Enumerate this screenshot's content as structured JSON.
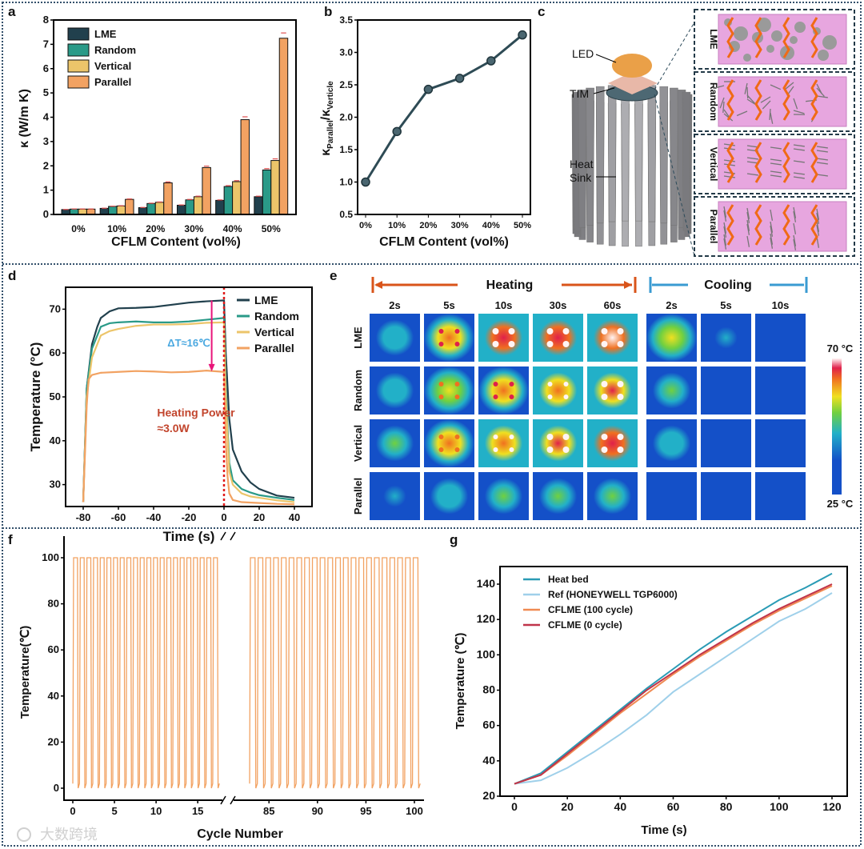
{
  "panels": {
    "a": "a",
    "b": "b",
    "c": "c",
    "d": "d",
    "e": "e",
    "f": "f",
    "g": "g"
  },
  "watermark": "大数跨境",
  "chart_data": [
    {
      "id": "a",
      "type": "bar",
      "xlabel": "CFLM Content (vol%)",
      "ylabel": "κ (W/m K)",
      "ylim": [
        0,
        8
      ],
      "yticks": [
        0,
        1,
        2,
        3,
        4,
        5,
        6,
        7,
        8
      ],
      "categories": [
        "0%",
        "10%",
        "20%",
        "30%",
        "40%",
        "50%"
      ],
      "legend_position": "top-left",
      "series": [
        {
          "name": "LME",
          "color": "#21404d",
          "values": [
            0.2,
            0.25,
            0.28,
            0.38,
            0.58,
            0.73
          ]
        },
        {
          "name": "Random",
          "color": "#2a9a88",
          "values": [
            0.22,
            0.33,
            0.45,
            0.6,
            1.15,
            1.83
          ]
        },
        {
          "name": "Vertical",
          "color": "#ecc56a",
          "values": [
            0.22,
            0.35,
            0.5,
            0.73,
            1.35,
            2.22
          ]
        },
        {
          "name": "Parallel",
          "color": "#f2a262",
          "values": [
            0.22,
            0.62,
            1.3,
            1.93,
            3.9,
            7.25
          ]
        }
      ]
    },
    {
      "id": "b",
      "type": "line",
      "xlabel": "CFLM Content (vol%)",
      "ylabel_main": "κ",
      "ylabel_sub1": "Parallel",
      "ylabel_sep": "/κ",
      "ylabel_sub2": "Verticle",
      "ylim": [
        0.5,
        3.5
      ],
      "yticks": [
        "0.5",
        "1.0",
        "1.5",
        "2.0",
        "2.5",
        "3.0",
        "3.5"
      ],
      "categories": [
        "0%",
        "10%",
        "20%",
        "30%",
        "40%",
        "50%"
      ],
      "values": [
        1.0,
        1.78,
        2.43,
        2.6,
        2.87,
        3.27
      ],
      "color": "#2e4b55"
    },
    {
      "id": "d",
      "type": "line",
      "xlabel": "Time (s)",
      "ylabel": "Temperature (°C)",
      "xlim": [
        -90,
        50
      ],
      "ylim": [
        25,
        75
      ],
      "xticks": [
        -80,
        -60,
        -40,
        -20,
        0,
        20,
        40
      ],
      "yticks": [
        30,
        40,
        50,
        60,
        70
      ],
      "legend_position": "top-right",
      "annotations": {
        "delta": "ΔT≈16℃",
        "power_line1": "Heating Power",
        "power_line2": "≈3.0W"
      },
      "series": [
        {
          "name": "LME",
          "color": "#21404d",
          "x": [
            -80,
            -78,
            -75,
            -72,
            -70,
            -65,
            -60,
            -50,
            -40,
            -30,
            -20,
            -10,
            0,
            1,
            3,
            5,
            10,
            15,
            20,
            30,
            40
          ],
          "y": [
            26,
            52,
            62,
            66,
            68,
            69.5,
            70.2,
            70.3,
            70.5,
            71,
            71.5,
            71.8,
            72,
            60,
            45,
            38,
            33,
            30.5,
            29,
            27.5,
            27
          ]
        },
        {
          "name": "Random",
          "color": "#2a9a88",
          "x": [
            -80,
            -78,
            -75,
            -72,
            -70,
            -65,
            -60,
            -50,
            -40,
            -30,
            -20,
            -10,
            0,
            1,
            3,
            5,
            10,
            15,
            20,
            30,
            40
          ],
          "y": [
            26,
            52,
            61,
            64,
            66,
            66.8,
            67,
            67.2,
            67,
            67,
            67.2,
            67.6,
            68,
            52,
            35,
            31,
            29,
            28.2,
            27.6,
            27,
            26.5
          ]
        },
        {
          "name": "Vertical",
          "color": "#ecc56a",
          "x": [
            -80,
            -78,
            -75,
            -72,
            -70,
            -65,
            -60,
            -50,
            -40,
            -30,
            -20,
            -10,
            0,
            1,
            3,
            5,
            10,
            15,
            20,
            30,
            40
          ],
          "y": [
            26,
            50,
            59,
            62,
            64,
            65,
            65.5,
            66.2,
            66.5,
            66.5,
            66.6,
            66.9,
            67,
            50,
            33,
            30,
            28,
            27.3,
            27,
            26.4,
            26
          ]
        },
        {
          "name": "Parallel",
          "color": "#f2a262",
          "x": [
            -80,
            -78,
            -77,
            -75,
            -70,
            -60,
            -50,
            -40,
            -30,
            -20,
            -10,
            0,
            1,
            2,
            3,
            5,
            10,
            20,
            30,
            40
          ],
          "y": [
            26,
            48,
            54,
            55,
            55.5,
            55.7,
            55.9,
            55.8,
            55.6,
            55.7,
            56,
            55.7,
            40,
            32,
            28,
            26.5,
            26,
            25.8,
            25.6,
            25.5
          ]
        }
      ]
    },
    {
      "id": "e",
      "type": "heatmap",
      "group_heating": "Heating",
      "group_cooling": "Cooling",
      "columns": [
        "2s",
        "5s",
        "10s",
        "30s",
        "60s",
        "2s",
        "5s",
        "10s"
      ],
      "rows": [
        "LME",
        "Random",
        "Vertical",
        "Parallel"
      ],
      "colorbar_max": "70 °C",
      "colorbar_min": "25 °C",
      "intensity": [
        [
          0.45,
          0.8,
          0.9,
          0.93,
          0.95,
          0.62,
          0.3,
          0.2
        ],
        [
          0.45,
          0.7,
          0.82,
          0.85,
          0.88,
          0.5,
          0.15,
          0.08
        ],
        [
          0.55,
          0.75,
          0.85,
          0.88,
          0.9,
          0.4,
          0.12,
          0.08
        ],
        [
          0.3,
          0.45,
          0.5,
          0.52,
          0.55,
          0.15,
          0.05,
          0.02
        ]
      ]
    },
    {
      "id": "f",
      "type": "line",
      "xlabel": "Cycle Number",
      "ylabel": "Temperature(℃)",
      "ylim": [
        -5,
        105
      ],
      "yticks": [
        0,
        20,
        40,
        60,
        80,
        100
      ],
      "xticks_left": [
        0,
        5,
        10,
        15
      ],
      "xticks_right": [
        85,
        90,
        95,
        100
      ],
      "segments": [
        [
          0,
          17
        ],
        [
          83,
          100
        ]
      ],
      "cycle_min": 0,
      "cycle_max": 100,
      "color": "#f2a262"
    },
    {
      "id": "g",
      "type": "line",
      "xlabel": "Time (s)",
      "ylabel": "Temperature (℃)",
      "xlim": [
        -3,
        126
      ],
      "ylim": [
        20,
        148
      ],
      "xticks": [
        0,
        20,
        40,
        60,
        80,
        100,
        120
      ],
      "yticks": [
        20,
        40,
        60,
        80,
        100,
        120,
        140
      ],
      "legend_position": "top-left",
      "x": [
        0,
        10,
        20,
        30,
        40,
        50,
        60,
        70,
        80,
        90,
        100,
        110,
        120
      ],
      "series": [
        {
          "name": "Heat bed",
          "color": "#2a9bb5",
          "y": [
            27,
            33,
            45,
            57,
            69,
            81,
            92,
            103,
            113,
            122,
            131,
            138,
            146
          ]
        },
        {
          "name": "Ref (HONEYWELL TGP6000)",
          "color": "#9fd0ea",
          "y": [
            27,
            29,
            36,
            45,
            55,
            66,
            79,
            89,
            99,
            109,
            119,
            126,
            135
          ]
        },
        {
          "name": "CFLME (100 cycle)",
          "color": "#f08a52",
          "y": [
            27,
            32,
            43,
            55,
            67,
            78,
            89,
            99,
            108,
            117,
            125,
            132,
            139
          ]
        },
        {
          "name": "CFLME (0 cycle)",
          "color": "#c0344a",
          "y": [
            27,
            32,
            44,
            56,
            68,
            80,
            90,
            100,
            109,
            118,
            126,
            133,
            140
          ]
        }
      ]
    }
  ],
  "schematic_c": {
    "led": "LED",
    "tim": "TIM",
    "heat_sink_line1": "Heat",
    "heat_sink_line2": "Sink",
    "insets": [
      "LME",
      "Random",
      "Vertical",
      "Parallel"
    ]
  }
}
